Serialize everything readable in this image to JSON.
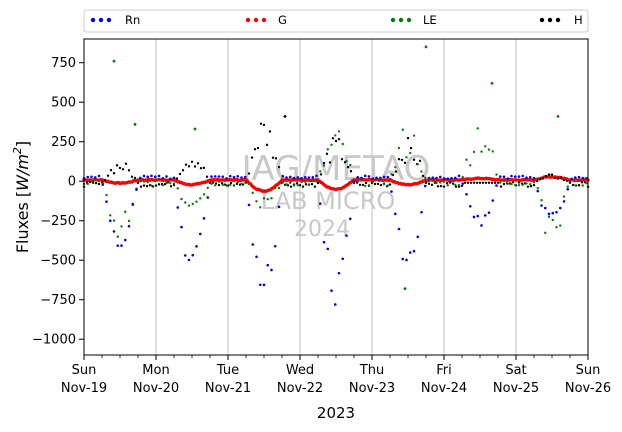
{
  "chart_data": {
    "type": "scatter",
    "ylabel_parts": {
      "base": "Fluxes [",
      "unit": "W/m",
      "exp": "2",
      "close": "]"
    },
    "xlabel": "2023",
    "ylim": [
      -1100,
      900
    ],
    "yticks": [
      750,
      500,
      250,
      0,
      -250,
      -500,
      -750,
      -1000
    ],
    "ytick_labels": [
      "750",
      "500",
      "250",
      "0",
      "−250",
      "−500",
      "−750",
      "−1000"
    ],
    "x_start": "2023-11-19",
    "x_end": "2023-11-26",
    "xticks": [
      {
        "date": "2023-11-19",
        "day": "Sun",
        "date_label": "Nov-19"
      },
      {
        "date": "2023-11-20",
        "day": "Mon",
        "date_label": "Nov-20"
      },
      {
        "date": "2023-11-21",
        "day": "Tue",
        "date_label": "Nov-21"
      },
      {
        "date": "2023-11-22",
        "day": "Wed",
        "date_label": "Nov-22"
      },
      {
        "date": "2023-11-23",
        "day": "Thu",
        "date_label": "Nov-23"
      },
      {
        "date": "2023-11-24",
        "day": "Fri",
        "date_label": "Nov-24"
      },
      {
        "date": "2023-11-25",
        "day": "Sat",
        "date_label": "Nov-25"
      },
      {
        "date": "2023-11-26",
        "day": "Sun",
        "date_label": "Nov-26"
      }
    ],
    "grid": "vertical",
    "legend_placement": "top",
    "series": [
      {
        "name": "Rn",
        "color": "#0000ff"
      },
      {
        "name": "G",
        "color": "#ff0000"
      },
      {
        "name": "LE",
        "color": "#008000"
      },
      {
        "name": "H",
        "color": "#000000"
      }
    ],
    "daily_peaks": {
      "Rn": [
        -420,
        -560,
        -720,
        -750,
        -560,
        -270,
        -250
      ],
      "LE": [
        -340,
        -270,
        -150,
        290,
        320,
        380,
        -340
      ],
      "H": [
        130,
        190,
        400,
        270,
        260,
        0,
        50
      ],
      "G": [
        -20,
        -30,
        -70,
        -60,
        -30,
        10,
        20
      ]
    },
    "outliers": [
      {
        "series": "LE",
        "date": "2023-11-19T10:00",
        "y": 760
      },
      {
        "series": "LE",
        "date": "2023-11-23T18:00",
        "y": 850
      },
      {
        "series": "LE",
        "date": "2023-11-24T16:00",
        "y": 620
      },
      {
        "series": "LE",
        "date": "2023-11-20T13:00",
        "y": 330
      },
      {
        "series": "LE",
        "date": "2023-11-19T17:00",
        "y": 360
      },
      {
        "series": "LE",
        "date": "2023-11-25T14:00",
        "y": 410
      },
      {
        "series": "LE",
        "date": "2023-11-23T11:00",
        "y": -680
      },
      {
        "series": "H",
        "date": "2023-11-21T19:00",
        "y": 410
      }
    ]
  },
  "watermark": {
    "line1": "IAG/METAO",
    "line2": "LAB MICRO",
    "line3": "2024"
  }
}
